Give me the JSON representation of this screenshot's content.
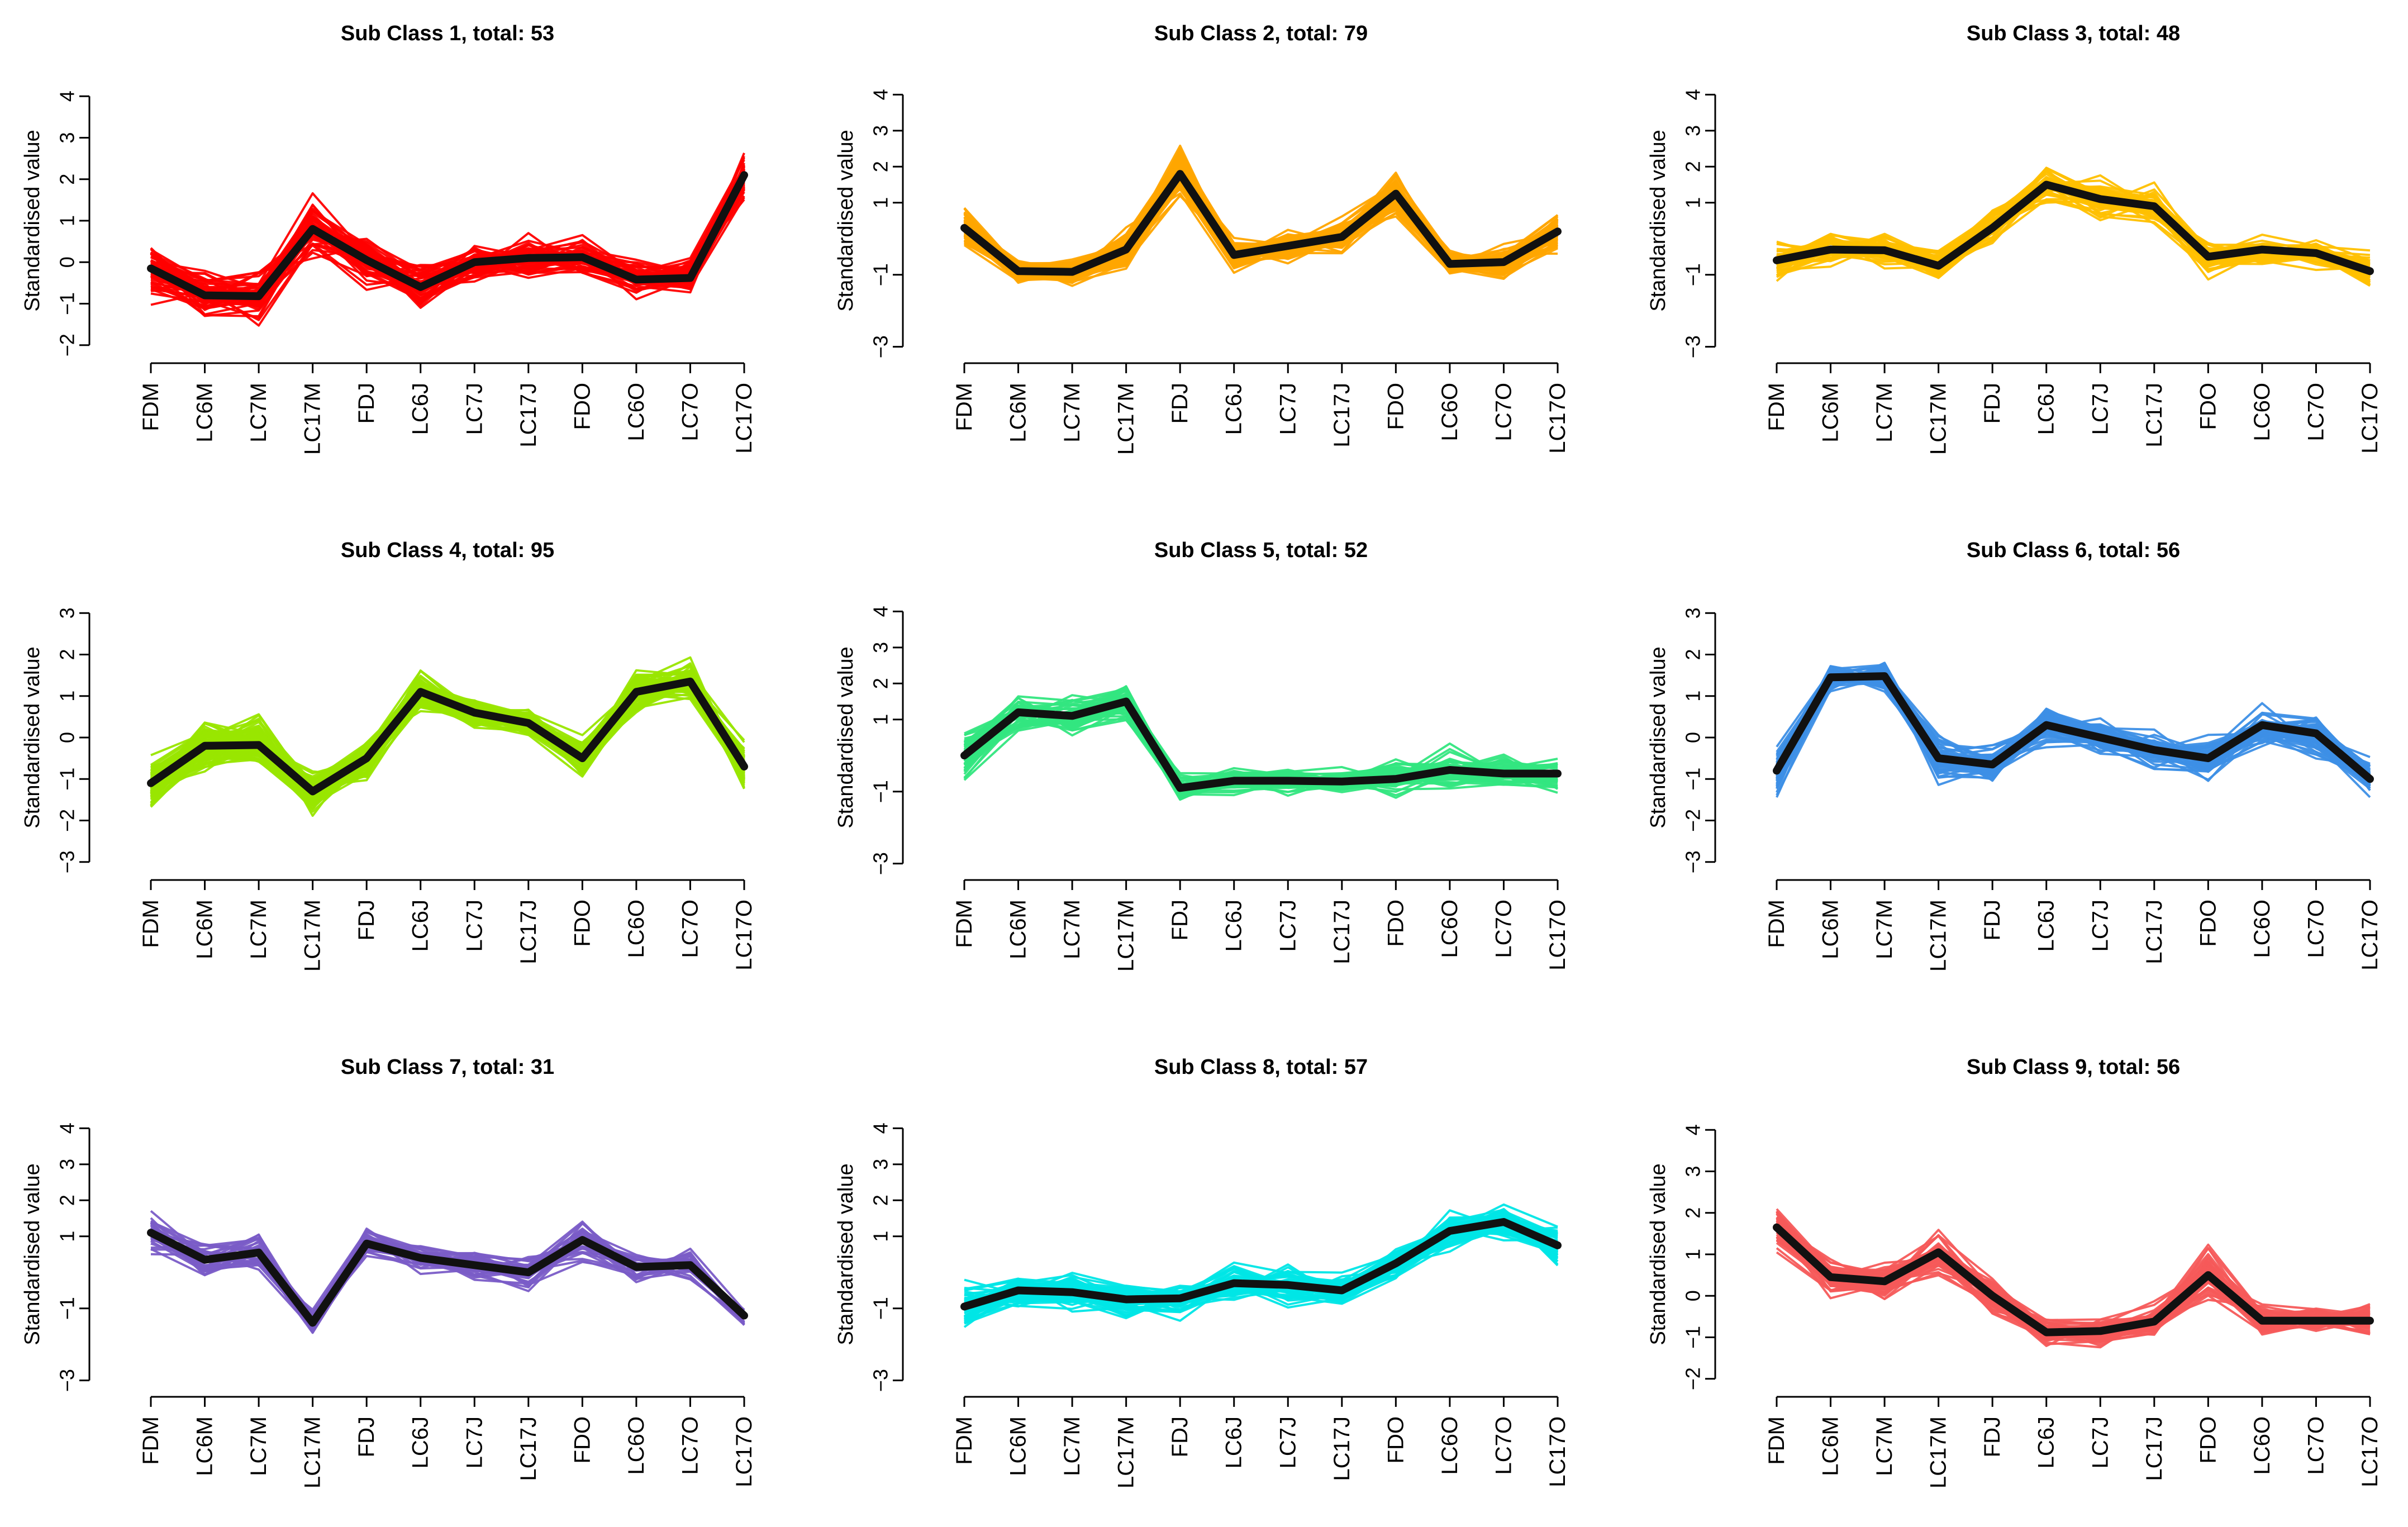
{
  "chart_data": [
    {
      "type": "line",
      "title": "Sub Class 1, total: 53",
      "ylabel": "Standardised value",
      "categories": [
        "FDM",
        "LC6M",
        "LC7M",
        "LC17M",
        "FDJ",
        "LC6J",
        "LC7J",
        "LC17J",
        "FDO",
        "LC6O",
        "LC7O",
        "LC17O"
      ],
      "y_ticks": [
        "4",
        "3",
        "2",
        "1",
        "0",
        "−1",
        "−2"
      ],
      "ylim": [
        -2.3,
        4.3
      ],
      "color": "#ff0000",
      "mean_series": {
        "name": "mean",
        "values": [
          -0.15,
          -0.8,
          -0.82,
          0.8,
          0.05,
          -0.6,
          0.0,
          0.1,
          0.12,
          -0.42,
          -0.38,
          2.1
        ]
      },
      "spread": [
        0.9,
        0.7,
        0.7,
        0.9,
        0.7,
        0.6,
        0.6,
        0.6,
        0.6,
        0.5,
        0.5,
        0.6
      ],
      "n_lines": 53
    },
    {
      "type": "line",
      "title": "Sub Class 2, total: 79",
      "ylabel": "Standardised value",
      "categories": [
        "FDM",
        "LC6M",
        "LC7M",
        "LC17M",
        "FDJ",
        "LC6J",
        "LC7J",
        "LC17J",
        "FDO",
        "LC6O",
        "LC7O",
        "LC17O"
      ],
      "y_ticks": [
        "4",
        "3",
        "2",
        "1",
        "−1",
        "−3"
      ],
      "ylim": [
        -3.3,
        4.3
      ],
      "color": "#ffa500",
      "mean_series": {
        "name": "mean",
        "values": [
          0.3,
          -0.9,
          -0.92,
          -0.3,
          1.8,
          -0.45,
          -0.2,
          0.05,
          1.25,
          -0.7,
          -0.65,
          0.2
        ]
      },
      "spread": [
        0.7,
        0.4,
        0.4,
        0.7,
        0.8,
        0.5,
        0.5,
        0.5,
        0.7,
        0.5,
        0.5,
        0.6
      ],
      "n_lines": 79
    },
    {
      "type": "line",
      "title": "Sub Class 3, total: 48",
      "ylabel": "Standardised value",
      "categories": [
        "FDM",
        "LC6M",
        "LC7M",
        "LC17M",
        "FDJ",
        "LC6J",
        "LC7J",
        "LC17J",
        "FDO",
        "LC6O",
        "LC7O",
        "LC17O"
      ],
      "y_ticks": [
        "4",
        "3",
        "2",
        "1",
        "−1",
        "−3"
      ],
      "ylim": [
        -3.3,
        4.3
      ],
      "color": "#ffc000",
      "mean_series": {
        "name": "mean",
        "values": [
          -0.6,
          -0.3,
          -0.32,
          -0.75,
          0.3,
          1.5,
          1.1,
          0.9,
          -0.5,
          -0.3,
          -0.4,
          -0.9
        ]
      },
      "spread": [
        0.6,
        0.6,
        0.6,
        0.6,
        0.6,
        0.6,
        0.6,
        0.6,
        0.6,
        0.5,
        0.5,
        0.6
      ],
      "n_lines": 48
    },
    {
      "type": "line",
      "title": "Sub Class 4, total: 95",
      "ylabel": "Standardised value",
      "categories": [
        "FDM",
        "LC6M",
        "LC7M",
        "LC17M",
        "FDJ",
        "LC6J",
        "LC7J",
        "LC17J",
        "FDO",
        "LC6O",
        "LC7O",
        "LC17O"
      ],
      "y_ticks": [
        "3",
        "2",
        "1",
        "0",
        "−1",
        "−2",
        "−3"
      ],
      "ylim": [
        -3.3,
        3.3
      ],
      "color": "#99e600",
      "mean_series": {
        "name": "mean",
        "values": [
          -1.1,
          -0.2,
          -0.18,
          -1.3,
          -0.5,
          1.1,
          0.6,
          0.35,
          -0.5,
          1.1,
          1.35,
          -0.7
        ]
      },
      "spread": [
        0.7,
        0.7,
        0.7,
        0.5,
        0.6,
        0.6,
        0.4,
        0.4,
        0.5,
        0.6,
        0.5,
        0.7
      ],
      "n_lines": 95
    },
    {
      "type": "line",
      "title": "Sub Class 5, total: 52",
      "ylabel": "Standardised value",
      "categories": [
        "FDM",
        "LC6M",
        "LC7M",
        "LC17M",
        "FDJ",
        "LC6J",
        "LC7J",
        "LC17J",
        "FDO",
        "LC6O",
        "LC7O",
        "LC17O"
      ],
      "y_ticks": [
        "4",
        "3",
        "2",
        "1",
        "−1",
        "−3"
      ],
      "ylim": [
        -3.3,
        4.3
      ],
      "color": "#33e680",
      "mean_series": {
        "name": "mean",
        "values": [
          0.0,
          1.2,
          1.1,
          1.5,
          -0.9,
          -0.7,
          -0.7,
          -0.72,
          -0.65,
          -0.4,
          -0.5,
          -0.5
        ]
      },
      "spread": [
        0.9,
        0.6,
        0.6,
        0.7,
        0.4,
        0.4,
        0.4,
        0.4,
        0.6,
        0.7,
        0.6,
        0.6
      ],
      "n_lines": 52
    },
    {
      "type": "line",
      "title": "Sub Class 6, total: 56",
      "ylabel": "Standardised value",
      "categories": [
        "FDM",
        "LC6M",
        "LC7M",
        "LC17M",
        "FDJ",
        "LC6J",
        "LC7J",
        "LC17J",
        "FDO",
        "LC6O",
        "LC7O",
        "LC17O"
      ],
      "y_ticks": [
        "3",
        "2",
        "1",
        "0",
        "−1",
        "−2",
        "−3"
      ],
      "ylim": [
        -3.3,
        3.3
      ],
      "color": "#3d8fe6",
      "mean_series": {
        "name": "mean",
        "values": [
          -0.8,
          1.45,
          1.48,
          -0.5,
          -0.65,
          0.3,
          0.0,
          -0.3,
          -0.5,
          0.3,
          0.1,
          -1.0
        ]
      },
      "spread": [
        0.7,
        0.5,
        0.5,
        0.7,
        0.6,
        0.5,
        0.5,
        0.5,
        0.6,
        0.6,
        0.6,
        0.5
      ],
      "n_lines": 56
    },
    {
      "type": "line",
      "title": "Sub Class 7, total: 31",
      "ylabel": "Standardised value",
      "categories": [
        "FDM",
        "LC6M",
        "LC7M",
        "LC17M",
        "FDJ",
        "LC6J",
        "LC7J",
        "LC17J",
        "FDO",
        "LC6O",
        "LC7O",
        "LC17O"
      ],
      "y_ticks": [
        "4",
        "3",
        "2",
        "1",
        "−1",
        "−3"
      ],
      "ylim": [
        -3.3,
        4.3
      ],
      "color": "#7a5cc7",
      "mean_series": {
        "name": "mean",
        "values": [
          1.1,
          0.35,
          0.55,
          -1.4,
          0.8,
          0.4,
          0.2,
          0.0,
          0.9,
          0.15,
          0.2,
          -1.2
        ]
      },
      "spread": [
        0.8,
        0.6,
        0.6,
        0.4,
        0.6,
        0.6,
        0.6,
        0.6,
        0.6,
        0.5,
        0.5,
        0.4
      ],
      "n_lines": 31
    },
    {
      "type": "line",
      "title": "Sub Class 8, total: 57",
      "ylabel": "Standardised value",
      "categories": [
        "FDM",
        "LC6M",
        "LC7M",
        "LC17M",
        "FDJ",
        "LC6J",
        "LC7J",
        "LC17J",
        "FDO",
        "LC6O",
        "LC7O",
        "LC17O"
      ],
      "y_ticks": [
        "4",
        "3",
        "2",
        "1",
        "−1",
        "−3"
      ],
      "ylim": [
        -3.3,
        4.3
      ],
      "color": "#00e6e6",
      "mean_series": {
        "name": "mean",
        "values": [
          -0.95,
          -0.5,
          -0.55,
          -0.75,
          -0.72,
          -0.3,
          -0.35,
          -0.5,
          0.25,
          1.15,
          1.4,
          0.75
        ]
      },
      "spread": [
        0.7,
        0.6,
        0.6,
        0.6,
        0.6,
        0.6,
        0.6,
        0.6,
        0.6,
        0.6,
        0.6,
        0.6
      ],
      "n_lines": 57
    },
    {
      "type": "line",
      "title": "Sub Class 9, total: 56",
      "ylabel": "Standardised value",
      "categories": [
        "FDM",
        "LC6M",
        "LC7M",
        "LC17M",
        "FDJ",
        "LC6J",
        "LC7J",
        "LC17J",
        "FDO",
        "LC6O",
        "LC7O",
        "LC17O"
      ],
      "y_ticks": [
        "4",
        "3",
        "2",
        "1",
        "0",
        "−1",
        "−2"
      ],
      "ylim": [
        -2.3,
        4.3
      ],
      "color": "#f55a5a",
      "mean_series": {
        "name": "mean",
        "values": [
          1.65,
          0.45,
          0.35,
          1.05,
          0.0,
          -0.88,
          -0.85,
          -0.62,
          0.5,
          -0.6,
          -0.6,
          -0.6
        ]
      },
      "spread": [
        0.7,
        0.5,
        0.5,
        0.6,
        0.5,
        0.4,
        0.4,
        0.5,
        0.7,
        0.4,
        0.4,
        0.5
      ],
      "n_lines": 56
    }
  ]
}
